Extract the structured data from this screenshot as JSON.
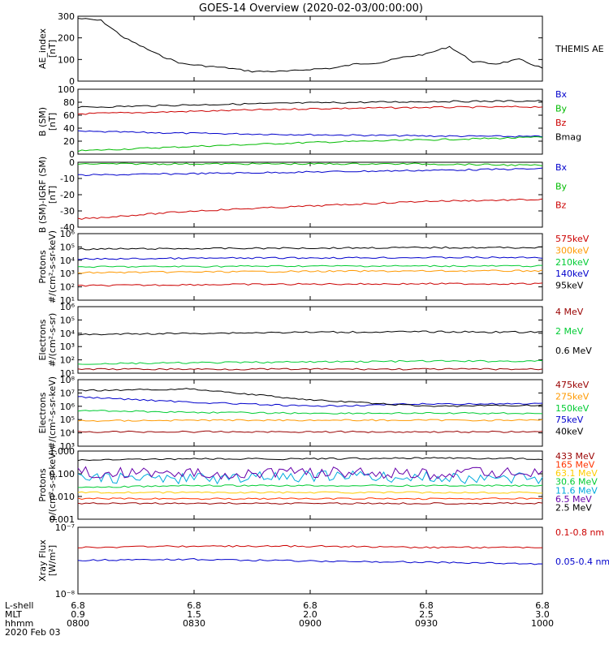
{
  "title": "GOES-14 Overview (2020-02-03/00:00:00)",
  "x_footer": {
    "row_labels": [
      "L-shell",
      "MLT",
      "hhmm",
      "2020 Feb 03"
    ],
    "lshell": [
      "6.8",
      "6.8",
      "6.8",
      "6.8",
      "6.8"
    ],
    "mlt": [
      "0.9",
      "1.5",
      "2.0",
      "2.5",
      "3.0"
    ],
    "hhmm": [
      "0800",
      "0830",
      "0900",
      "0930",
      "1000"
    ]
  },
  "chart_data": [
    {
      "type": "line",
      "panel": "ae",
      "ylabel": "AE_index",
      "yunit": "[nT]",
      "ylim": [
        0,
        300
      ],
      "yscale": "linear",
      "yticks": [
        "0",
        "100",
        "200",
        "300"
      ],
      "x_hours": [
        8.0,
        8.1,
        8.2,
        8.35,
        8.45,
        8.55,
        8.65,
        8.75,
        8.9,
        9.0,
        9.1,
        9.2,
        9.3,
        9.4,
        9.5,
        9.6,
        9.7,
        9.8,
        9.9,
        10.0
      ],
      "series": [
        {
          "name": "THEMIS AE",
          "color": "#000000",
          "values": [
            290,
            280,
            200,
            120,
            80,
            70,
            60,
            45,
            45,
            55,
            60,
            80,
            85,
            110,
            125,
            160,
            90,
            80,
            100,
            60
          ]
        }
      ]
    },
    {
      "type": "line",
      "panel": "bsm",
      "ylabel": "B (SM)",
      "yunit": "[nT]",
      "ylim": [
        0,
        100
      ],
      "yscale": "linear",
      "yticks": [
        "0",
        "20",
        "40",
        "60",
        "80",
        "100"
      ],
      "series": [
        {
          "name": "Bx",
          "color": "#0000cc",
          "values": [
            35,
            32,
            30,
            28,
            27
          ]
        },
        {
          "name": "By",
          "color": "#00bb00",
          "values": [
            5,
            12,
            18,
            22,
            26
          ]
        },
        {
          "name": "Bz",
          "color": "#cc0000",
          "values": [
            62,
            66,
            70,
            72,
            73
          ]
        },
        {
          "name": "Bmag",
          "color": "#000000",
          "values": [
            72,
            76,
            79,
            81,
            82
          ]
        }
      ]
    },
    {
      "type": "line",
      "panel": "bigrf",
      "ylabel": "B (SM)-IGRF (SM)",
      "yunit": "[nT]",
      "ylim": [
        -40,
        0
      ],
      "yscale": "linear",
      "yticks": [
        "-40",
        "-30",
        "-20",
        "-10",
        "0"
      ],
      "series": [
        {
          "name": "Bx",
          "color": "#0000cc",
          "values": [
            -8,
            -7,
            -6,
            -5,
            -4
          ]
        },
        {
          "name": "By",
          "color": "#00bb00",
          "values": [
            -1,
            -1,
            -1,
            -1,
            -2
          ]
        },
        {
          "name": "Bz",
          "color": "#cc0000",
          "values": [
            -35,
            -30,
            -27,
            -24,
            -23
          ]
        }
      ]
    },
    {
      "type": "line",
      "panel": "protons",
      "ylabel": "Protons",
      "yunit": "#/(cm²-s-sr-keV)",
      "ylim": [
        1,
        1000000
      ],
      "yscale": "log",
      "yticks": [
        "10¹",
        "10²",
        "10³",
        "10⁴",
        "10⁵",
        "10⁶"
      ],
      "series": [
        {
          "name": "575keV",
          "color": "#cc0000",
          "values": [
            20,
            25,
            28,
            30,
            30
          ]
        },
        {
          "name": "300keV",
          "color": "#ff9900",
          "values": [
            300,
            350,
            400,
            420,
            450
          ]
        },
        {
          "name": "210keV",
          "color": "#00cc33",
          "values": [
            1000,
            1100,
            1200,
            1200,
            1200
          ]
        },
        {
          "name": "140keV",
          "color": "#0000cc",
          "values": [
            5000,
            6000,
            6500,
            7000,
            7000
          ]
        },
        {
          "name": "95keV",
          "color": "#000000",
          "values": [
            40000,
            45000,
            50000,
            55000,
            55000
          ]
        }
      ]
    },
    {
      "type": "line",
      "panel": "electrons_mev",
      "ylabel": "Electrons",
      "yunit": "#/(cm²-s-sr)",
      "ylim": [
        10,
        1000000
      ],
      "yscale": "log",
      "yticks": [
        "10¹",
        "10²",
        "10³",
        "10⁴",
        "10⁵",
        "10⁶"
      ],
      "series": [
        {
          "name": "4 MeV",
          "color": "#990000",
          "values": [
            20,
            20,
            20,
            20,
            20
          ]
        },
        {
          "name": "2 MeV",
          "color": "#00cc33",
          "values": [
            50,
            60,
            70,
            80,
            80
          ]
        },
        {
          "name": "0.6 MeV",
          "color": "#000000",
          "values": [
            8000,
            10000,
            12000,
            13000,
            12000
          ]
        }
      ]
    },
    {
      "type": "line",
      "panel": "electrons_kev",
      "ylabel": "Electrons",
      "yunit": "#/(cm²-s-sr-keV)",
      "ylim": [
        1000,
        100000000
      ],
      "yscale": "log",
      "yticks": [
        "10³",
        "10⁴",
        "10⁵",
        "10⁶",
        "10⁷",
        "10⁸"
      ],
      "series": [
        {
          "name": "475keV",
          "color": "#990000",
          "values": [
            12000,
            12000,
            12000,
            12000,
            12000
          ]
        },
        {
          "name": "275keV",
          "color": "#ff9900",
          "values": [
            80000,
            90000,
            90000,
            90000,
            90000
          ]
        },
        {
          "name": "150keV",
          "color": "#00cc33",
          "values": [
            500000,
            350000,
            300000,
            300000,
            300000
          ]
        },
        {
          "name": "75keV",
          "color": "#0000cc",
          "values": [
            5000000,
            2000000,
            1000000,
            1500000,
            1500000
          ]
        },
        {
          "name": "40keV",
          "color": "#000000",
          "values": [
            15000000,
            20000000,
            3000000,
            1000000,
            1200000
          ]
        }
      ]
    },
    {
      "type": "line",
      "panel": "protons_mev",
      "ylabel": "Protons",
      "yunit": "p/(cm²-s-sr-keV)",
      "ylim": [
        0.001,
        1.0
      ],
      "yscale": "log",
      "yticks": [
        "0.001",
        "0.010",
        "0.100",
        "1.000"
      ],
      "series": [
        {
          "name": "433 MeV",
          "color": "#990000",
          "values": [
            0.005,
            0.005,
            0.005,
            0.005,
            0.005
          ]
        },
        {
          "name": "165 MeV",
          "color": "#ff3300",
          "values": [
            0.008,
            0.008,
            0.008,
            0.008,
            0.008
          ]
        },
        {
          "name": "63.1 MeV",
          "color": "#ffcc00",
          "values": [
            0.015,
            0.015,
            0.015,
            0.015,
            0.015
          ]
        },
        {
          "name": "30.6 MeV",
          "color": "#00cc33",
          "values": [
            0.025,
            0.03,
            0.03,
            0.03,
            0.03
          ]
        },
        {
          "name": "11.6 MeV",
          "color": "#00aadd",
          "values": [
            0.07,
            0.06,
            0.08,
            0.07,
            0.06
          ]
        },
        {
          "name": "6.5 MeV",
          "color": "#6600aa",
          "values": [
            0.12,
            0.1,
            0.12,
            0.1,
            0.12
          ]
        },
        {
          "name": "2.5 MeV",
          "color": "#000000",
          "values": [
            0.4,
            0.45,
            0.45,
            0.5,
            0.45
          ]
        }
      ]
    },
    {
      "type": "line",
      "panel": "xray",
      "ylabel": "Xray Flux",
      "yunit": "[W/m²]",
      "ylim": [
        1e-08,
        1e-07
      ],
      "yscale": "log",
      "yticks": [
        "10⁻⁸",
        "10⁻⁷"
      ],
      "series": [
        {
          "name": "0.1-0.8 nm",
          "color": "#cc0000",
          "values": [
            5e-08,
            5.2e-08,
            5.2e-08,
            5e-08,
            5e-08
          ]
        },
        {
          "name": "0.05-0.4 nm",
          "color": "#0000cc",
          "values": [
            3.2e-08,
            3.3e-08,
            3.1e-08,
            3e-08,
            2.8e-08
          ]
        }
      ]
    }
  ]
}
